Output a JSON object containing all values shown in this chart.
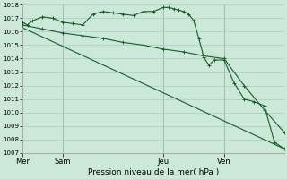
{
  "bg_color": "#cce8d8",
  "grid_color": "#aaccbc",
  "line_color": "#1a5c2a",
  "title": "Pression niveau de la mer( hPa )",
  "ylim": [
    1007,
    1018
  ],
  "yticks": [
    1007,
    1008,
    1009,
    1010,
    1011,
    1012,
    1013,
    1014,
    1015,
    1016,
    1017,
    1018
  ],
  "day_labels": [
    "Mer",
    "Sam",
    "Jeu",
    "Ven"
  ],
  "day_positions": [
    0,
    4,
    14,
    20
  ],
  "xlim": [
    0,
    26
  ],
  "series1_x": [
    0,
    0.5,
    1,
    2,
    3,
    4,
    5,
    6,
    7,
    8,
    9,
    10,
    11,
    12,
    13,
    14,
    14.5,
    15,
    15.5,
    16,
    16.5,
    17,
    17.5,
    18,
    18.5,
    19,
    20,
    21,
    22,
    23,
    24,
    25,
    26
  ],
  "series1_y": [
    1016.7,
    1016.5,
    1016.8,
    1017.1,
    1017.0,
    1016.7,
    1016.6,
    1016.5,
    1017.3,
    1017.5,
    1017.4,
    1017.3,
    1017.2,
    1017.5,
    1017.5,
    1017.8,
    1017.8,
    1017.7,
    1017.6,
    1017.5,
    1017.3,
    1016.8,
    1015.5,
    1014.1,
    1013.5,
    1013.9,
    1013.9,
    1012.2,
    1011.0,
    1010.8,
    1010.5,
    1007.8,
    1007.3
  ],
  "series2_x": [
    0,
    2,
    4,
    6,
    8,
    10,
    12,
    14,
    16,
    18,
    20,
    22,
    24,
    26
  ],
  "series2_y": [
    1016.5,
    1016.2,
    1015.9,
    1015.7,
    1015.5,
    1015.2,
    1015.0,
    1014.7,
    1014.5,
    1014.2,
    1014.0,
    1012.0,
    1010.2,
    1008.5
  ],
  "series3_x": [
    0,
    26
  ],
  "series3_y": [
    1016.3,
    1007.3
  ],
  "vline_color": "#888888"
}
